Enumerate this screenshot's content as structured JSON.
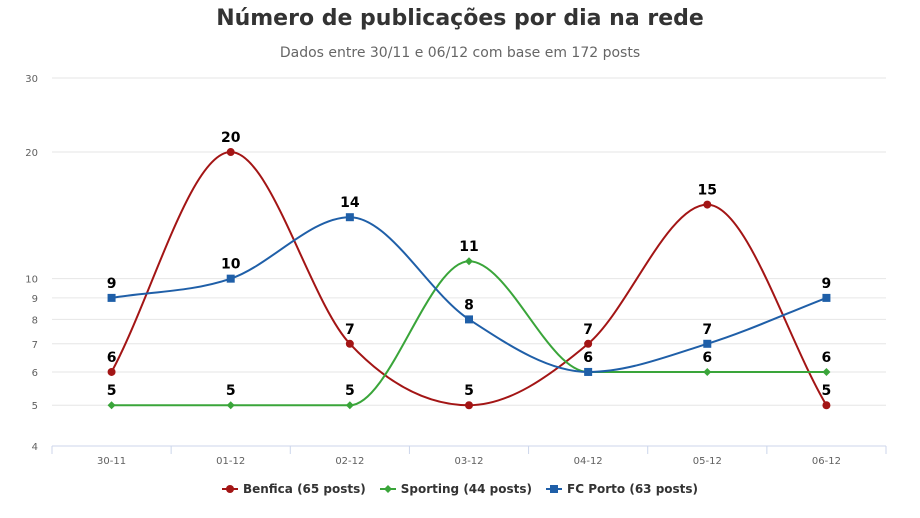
{
  "chart_data": {
    "type": "line",
    "title": "Número de publicações por dia na rede",
    "subtitle": "Dados entre 30/11 e 06/12 com base em 172 posts",
    "categories": [
      "30-11",
      "01-12",
      "02-12",
      "03-12",
      "04-12",
      "05-12",
      "06-12"
    ],
    "y_scale": "log",
    "ylim": [
      4,
      30
    ],
    "y_ticks": [
      4,
      5,
      6,
      7,
      8,
      9,
      10,
      20,
      30
    ],
    "grid": true,
    "legend_position": "bottom",
    "series": [
      {
        "name": "Benfica (65 posts)",
        "color": "#a31515",
        "marker": "circle",
        "values": [
          6,
          20,
          7,
          5,
          7,
          15,
          5
        ]
      },
      {
        "name": "Sporting (44 posts)",
        "color": "#3aa53a",
        "marker": "diamond",
        "values": [
          5,
          5,
          5,
          11,
          6,
          6,
          6
        ]
      },
      {
        "name": "FC Porto (63 posts)",
        "color": "#1f5fa8",
        "marker": "square",
        "values": [
          9,
          10,
          14,
          8,
          6,
          7,
          9
        ]
      }
    ]
  }
}
